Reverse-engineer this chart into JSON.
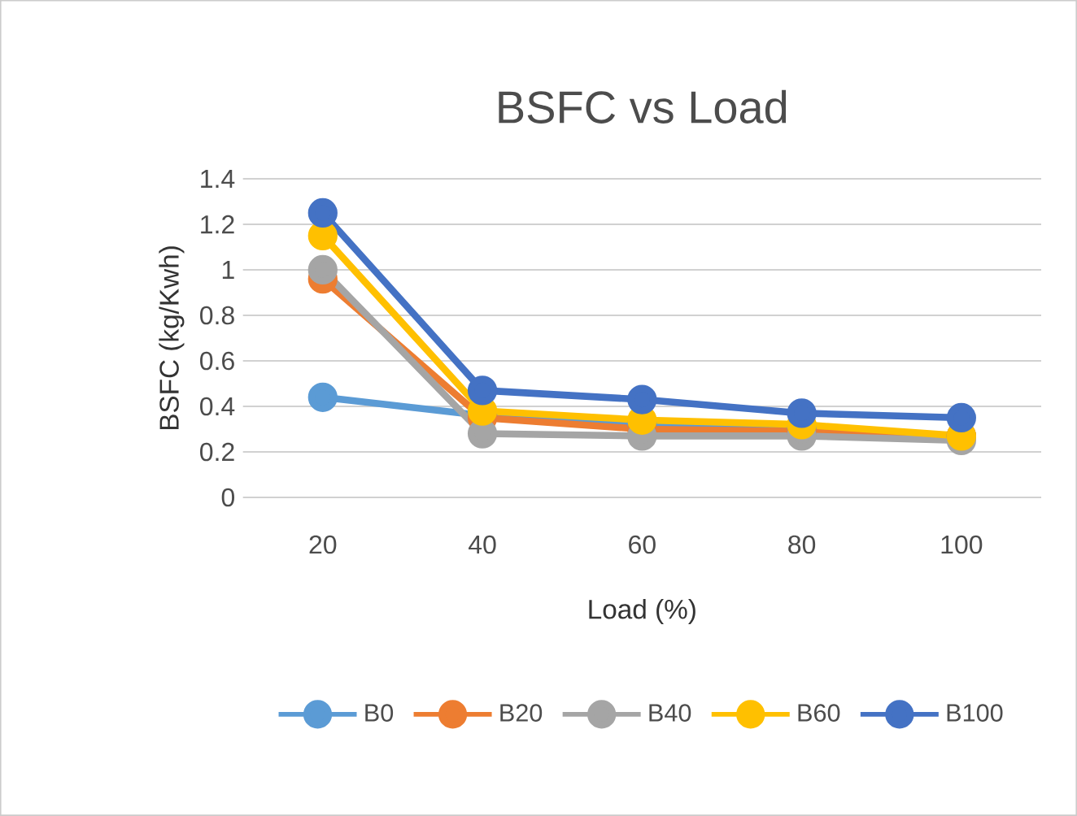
{
  "chart_data": {
    "type": "line",
    "title": "BSFC vs Load",
    "xlabel": "Load (%)",
    "ylabel": "BSFC (kg/Kwh)",
    "categories": [
      "20",
      "40",
      "60",
      "80",
      "100"
    ],
    "series": [
      {
        "name": "B0",
        "color": "#5b9bd5",
        "values": [
          0.44,
          0.36,
          0.32,
          0.3,
          0.27
        ]
      },
      {
        "name": "B20",
        "color": "#ed7d31",
        "values": [
          0.96,
          0.35,
          0.3,
          0.29,
          0.27
        ]
      },
      {
        "name": "B40",
        "color": "#a5a5a5",
        "values": [
          1.0,
          0.28,
          0.27,
          0.27,
          0.25
        ]
      },
      {
        "name": "B60",
        "color": "#ffc000",
        "values": [
          1.15,
          0.38,
          0.34,
          0.32,
          0.27
        ]
      },
      {
        "name": "B100",
        "color": "#4472c4",
        "values": [
          1.25,
          0.47,
          0.43,
          0.37,
          0.35
        ]
      }
    ],
    "ylim": [
      0,
      1.4
    ],
    "yticks": [
      0,
      0.2,
      0.4,
      0.6,
      0.8,
      1,
      1.2,
      1.4
    ],
    "grid": "y",
    "legend": "bottom",
    "marker": "circle",
    "line_style": "solid"
  }
}
